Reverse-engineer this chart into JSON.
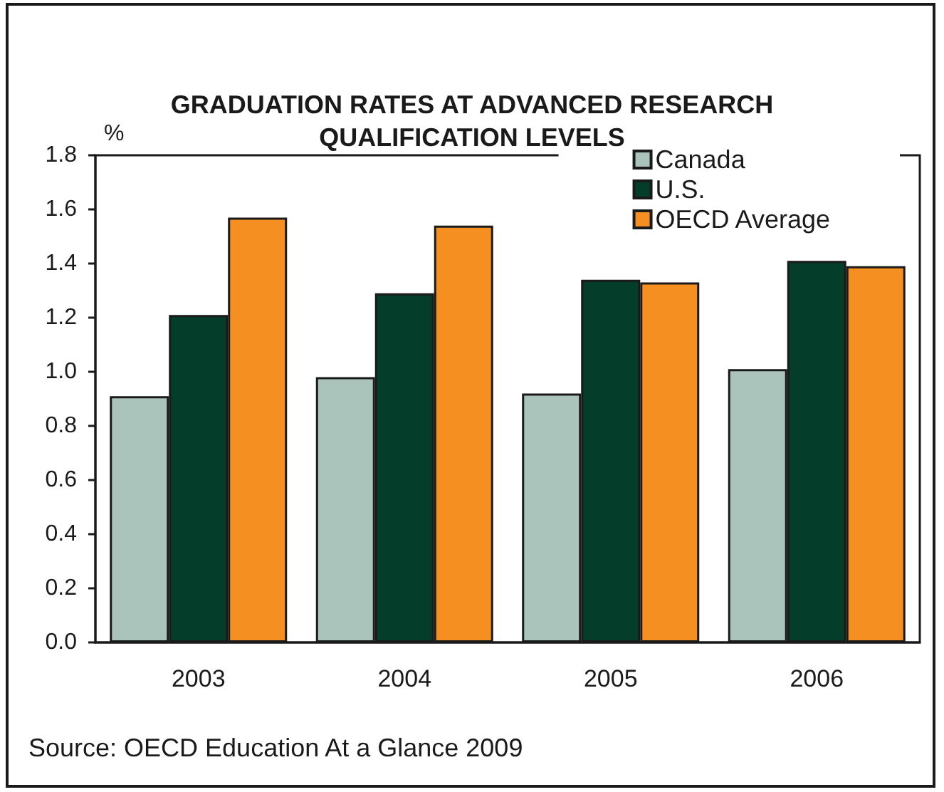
{
  "chart_data": {
    "type": "bar",
    "title": "GRADUATION RATES AT ADVANCED RESEARCH QUALIFICATION LEVELS",
    "ylabel": "%",
    "categories": [
      "2003",
      "2004",
      "2005",
      "2006"
    ],
    "series": [
      {
        "name": "Canada",
        "color": "#aac4bb",
        "values": [
          0.91,
          0.98,
          0.92,
          1.01
        ]
      },
      {
        "name": "U.S.",
        "color": "#053d2b",
        "values": [
          1.21,
          1.29,
          1.34,
          1.41
        ]
      },
      {
        "name": "OECD Average",
        "color": "#f58f22",
        "values": [
          1.57,
          1.54,
          1.33,
          1.39
        ]
      }
    ],
    "ylim": [
      0,
      1.8
    ],
    "yticks": [
      {
        "value": 0,
        "label": "0.0"
      },
      0.2,
      0.4,
      0.6,
      0.8,
      {
        "value": 1,
        "label": "1.0"
      },
      1.2,
      1.4,
      1.6,
      1.8
    ],
    "grid": false,
    "legend": "top right",
    "annotations": [
      "Source: OECD Education At a Glance 2009"
    ]
  }
}
